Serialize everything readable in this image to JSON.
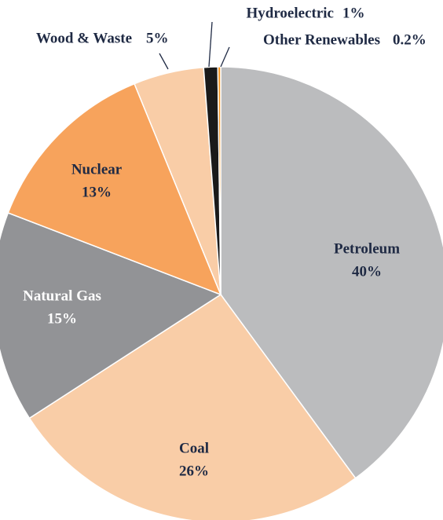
{
  "chart_data": {
    "type": "pie",
    "categories": [
      "Petroleum",
      "Coal",
      "Natural Gas",
      "Nuclear",
      "Wood & Waste",
      "Hydroelectric",
      "Other Renewables"
    ],
    "values": [
      40,
      26,
      15,
      13,
      5,
      1,
      0.2
    ],
    "value_labels": [
      "40%",
      "26%",
      "15%",
      "13%",
      "5%",
      "1%",
      "0.2%"
    ],
    "colors": [
      "#bbbcbe",
      "#f9cda7",
      "#929396",
      "#f7a35c",
      "#f9cda7",
      "#1a1a1a",
      "#f7941d"
    ]
  }
}
